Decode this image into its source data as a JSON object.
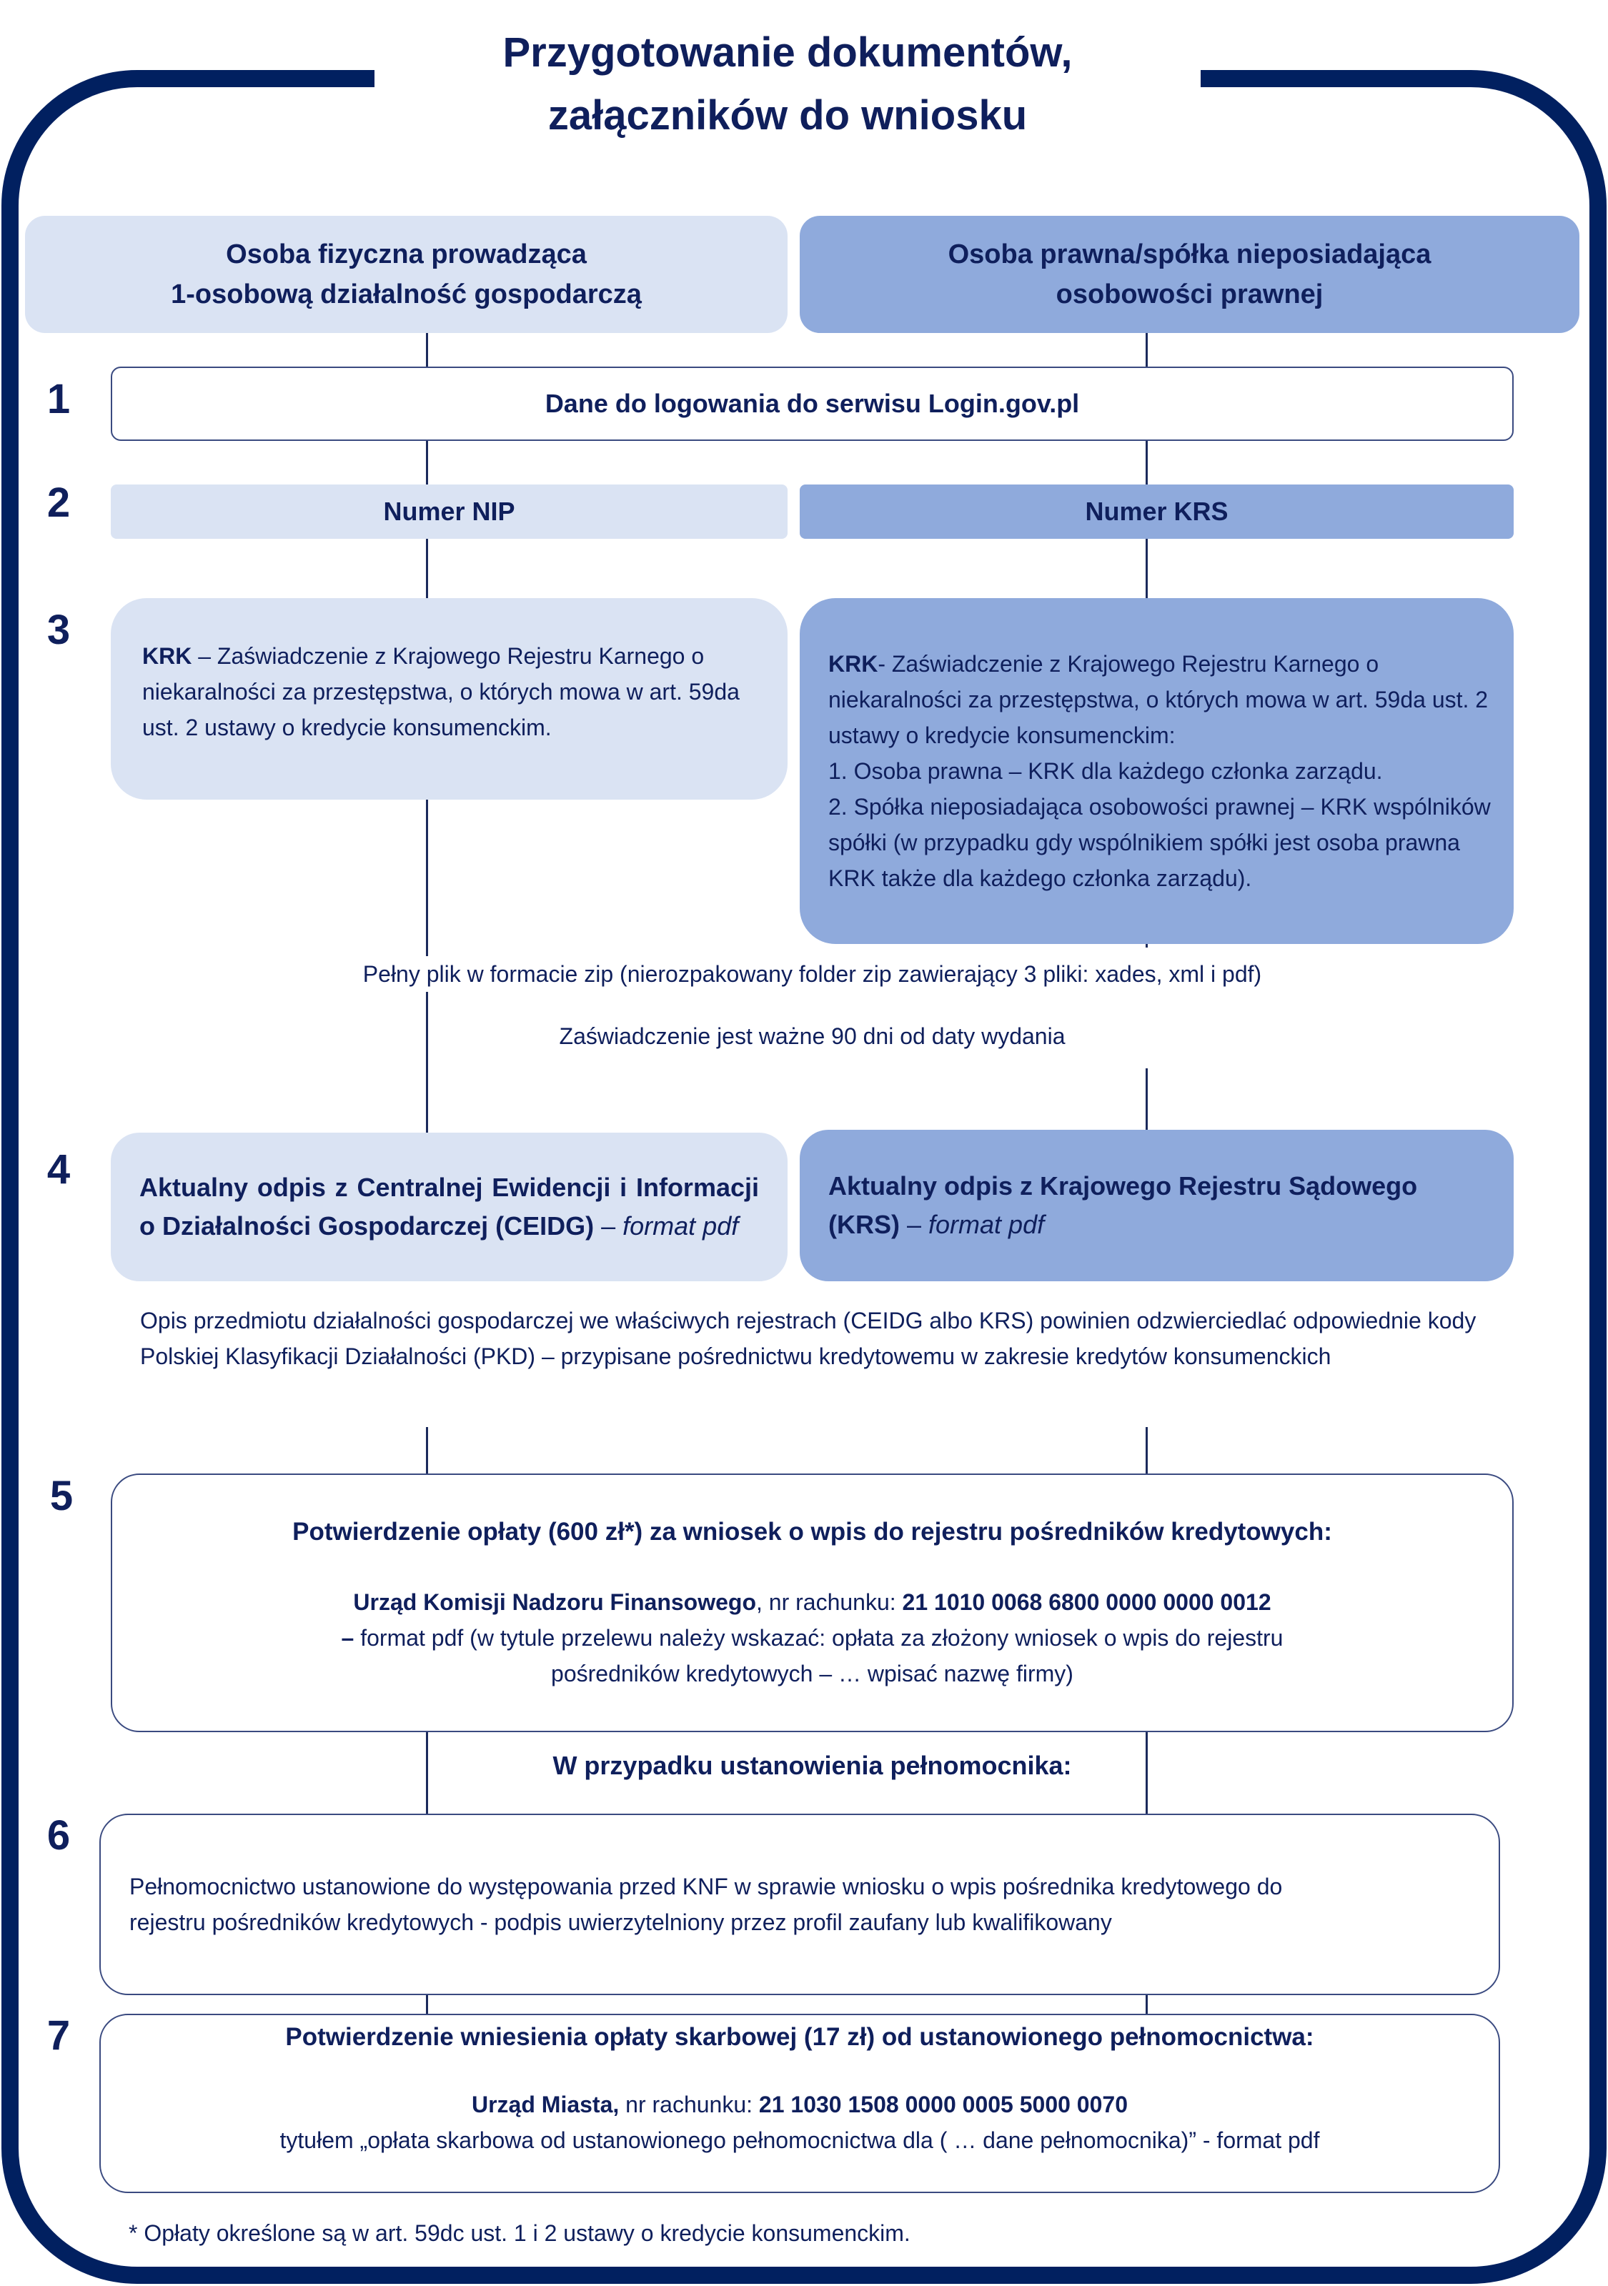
{
  "title": {
    "line1": "Przygotowanie dokumentów,",
    "line2": "załączników do wniosku"
  },
  "colors": {
    "frame": "#012060",
    "light_box": "#dae3f3",
    "mid_box": "#8faadc",
    "text": "#0f1f5c"
  },
  "columns": {
    "left": {
      "line1": "Osoba fizyczna prowadząca",
      "line2": "1-osobową działalność gospodarczą"
    },
    "right": {
      "line1": "Osoba prawna/spółka nieposiadająca",
      "line2": "osobowości prawnej"
    }
  },
  "steps": {
    "s1": {
      "num": "1",
      "text": "Dane do logowania do serwisu Login.gov.pl"
    },
    "s2": {
      "num": "2",
      "left": "Numer NIP",
      "right": "Numer KRS"
    },
    "s3": {
      "num": "3",
      "left_bold": "KRK",
      "left_text": " – Zaświadczenie z Krajowego Rejestru Karnego o niekaralności za przestępstwa, o których mowa w art. 59da ust. 2 ustawy o kredycie konsumenckim.",
      "right_bold": "KRK",
      "right_text": "- Zaświadczenie z Krajowego Rejestru Karnego o niekaralności za przestępstwa, o których mowa w art. 59da ust. 2 ustawy o kredycie konsumenckim:",
      "right_item1": "1. Osoba prawna – KRK dla każdego członka zarządu.",
      "right_item2": "2. Spółka nieposiadająca osobowości prawnej – KRK wspólników spółki (w przypadku gdy wspólnikiem spółki jest osoba prawna KRK także dla każdego członka zarządu).",
      "note1": "Pełny plik w formacie zip (nierozpakowany folder zip zawierający 3 pliki: xades, xml i pdf)",
      "note2": "Zaświadczenie jest ważne 90 dni od daty wydania"
    },
    "s4": {
      "num": "4",
      "left_bold": "Aktualny odpis z Centralnej Ewidencji i Informacji o Działalności Gospodarczej (CEIDG)",
      "right_bold": "Aktualny odpis z Krajowego Rejestru Sądowego (KRS)",
      "dash": " – ",
      "format": "format pdf",
      "note": "Opis przedmiotu działalności gospodarczej we właściwych rejestrach (CEIDG albo KRS) powinien odzwierciedlać odpowiednie kody Polskiej Klasyfikacji Działalności (PKD) – przypisane pośrednictwu kredytowemu w zakresie kredytów konsumenckich"
    },
    "s5": {
      "num": "5",
      "heading": "Potwierdzenie opłaty (600 zł*) za wniosek o wpis do rejestru pośredników kredytowych:",
      "recipient": "Urząd Komisji Nadzoru Finansowego",
      "account_label": ", nr rachunku: ",
      "account": "21 1010 0068 6800 0000 0000 0012",
      "dash": "– ",
      "details": "format pdf (w tytule przelewu należy wskazać: opłata za złożony wniosek o wpis do rejestru pośredników kredytowych –  … wpisać nazwę firmy)"
    },
    "proxy_heading": "W przypadku ustanowienia pełnomocnika:",
    "s6": {
      "num": "6",
      "text": "Pełnomocnictwo ustanowione do występowania przed KNF w sprawie wniosku o wpis pośrednika kredytowego do rejestru pośredników kredytowych - podpis uwierzytelniony przez profil zaufany lub kwalifikowany"
    },
    "s7": {
      "num": "7",
      "heading": "Potwierdzenie wniesienia opłaty skarbowej (17 zł) od ustanowionego pełnomocnictwa:",
      "recipient": "Urząd Miasta,",
      "account_label": " nr rachunku: ",
      "account": "21 1030 1508 0000 0005 5000 0070",
      "details": "tytułem „opłata skarbowa od ustanowionego pełnomocnictwa dla ( … dane pełnomocnika)” - format pdf"
    }
  },
  "footnote": "* Opłaty określone są w art. 59dc ust. 1 i 2 ustawy o kredycie konsumenckim."
}
